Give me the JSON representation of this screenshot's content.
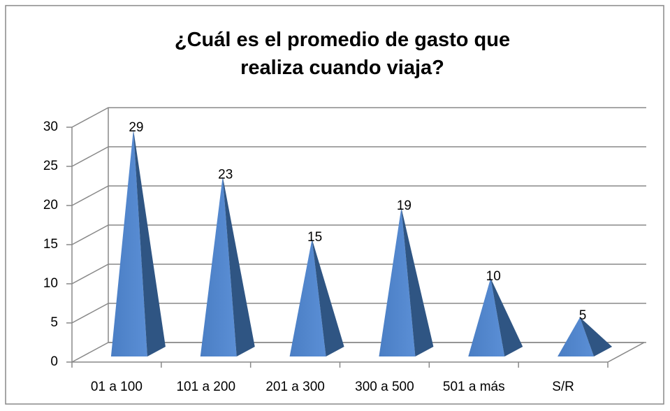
{
  "chart_data": {
    "type": "pyramid3d",
    "title": "¿Cuál es el promedio de gasto que realiza cuando viaja?",
    "categories": [
      "01 a 100",
      "101 a 200",
      "201 a 300",
      "300 a 500",
      "501 a más",
      "S/R"
    ],
    "values": [
      29,
      23,
      15,
      19,
      10,
      5
    ],
    "color": "#4f81bd",
    "ylim": [
      0,
      30
    ],
    "yticks": [
      0,
      5,
      10,
      15,
      20,
      25,
      30
    ],
    "grid": true
  }
}
